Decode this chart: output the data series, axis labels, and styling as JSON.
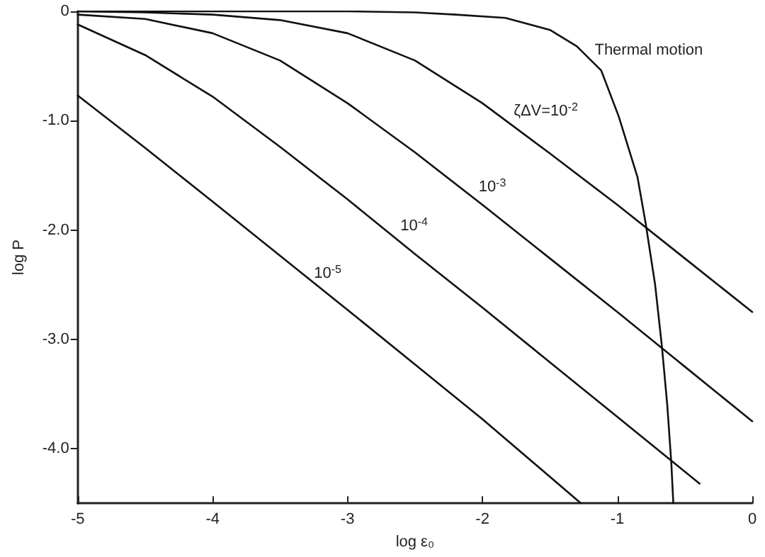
{
  "chart_data": {
    "type": "line",
    "xlabel": "log ε₀",
    "ylabel": "log P",
    "xlim": [
      -5,
      0
    ],
    "xticks": [
      -5,
      -4,
      -3,
      -2,
      -1,
      0
    ],
    "ylim": [
      -4.5,
      0
    ],
    "yticks": [
      {
        "value": 0,
        "label": "0"
      },
      {
        "value": -1,
        "label": "-1.0"
      },
      {
        "value": -2,
        "label": "-2.0"
      },
      {
        "value": -3,
        "label": "-3.0"
      },
      {
        "value": -4,
        "label": "-4.0"
      }
    ],
    "grid": false,
    "marker": "none",
    "line_style": "solid",
    "series": [
      {
        "color": "#111111",
        "x": [
          -5,
          -3,
          -2.5,
          -2.2,
          -1.83,
          -1.5,
          -1.3,
          -1.12,
          -0.99,
          -0.85,
          -0.79,
          -0.72,
          -0.67,
          -0.63,
          -0.6,
          -0.585
        ],
        "values": [
          0,
          0,
          -0.01,
          -0.03,
          -0.06,
          -0.17,
          -0.32,
          -0.54,
          -0.96,
          -1.52,
          -1.94,
          -2.5,
          -3.06,
          -3.6,
          -4.13,
          -4.5
        ]
      },
      {
        "color": "#111111",
        "x": [
          -5,
          -4.5,
          -4,
          -3.5,
          -3,
          -2.5,
          -2,
          -1.5,
          -1,
          -0.5,
          0
        ],
        "values": [
          0,
          -0.01,
          -0.03,
          -0.08,
          -0.2,
          -0.45,
          -0.84,
          -1.3,
          -1.77,
          -2.26,
          -2.75
        ]
      },
      {
        "color": "#111111",
        "x": [
          -5,
          -4.5,
          -4,
          -3.5,
          -3,
          -2.5,
          -2,
          -1.5,
          -1,
          -0.5,
          0
        ],
        "values": [
          -0.03,
          -0.07,
          -0.2,
          -0.45,
          -0.84,
          -1.29,
          -1.77,
          -2.26,
          -2.75,
          -3.25,
          -3.75
        ]
      },
      {
        "color": "#111111",
        "x": [
          -5,
          -4.5,
          -4,
          -3.5,
          -3,
          -2.5,
          -2,
          -1.5,
          -1,
          -0.39
        ],
        "values": [
          -0.12,
          -0.4,
          -0.78,
          -1.24,
          -1.72,
          -2.22,
          -2.71,
          -3.21,
          -3.71,
          -4.32
        ]
      },
      {
        "color": "#111111",
        "x": [
          -5,
          -4.5,
          -4,
          -3,
          -2,
          -1.27
        ],
        "values": [
          -0.77,
          -1.25,
          -1.74,
          -2.73,
          -3.73,
          -4.5
        ]
      }
    ],
    "annotations": [
      {
        "text": "Thermal motion",
        "x": -1.2,
        "y": -0.44
      },
      {
        "text": "ζΔV=10$^{-2}$",
        "x": -1.8,
        "y": -1.02
      },
      {
        "text": "10$^{-3}$",
        "x": -2.06,
        "y": -1.71
      },
      {
        "text": "10$^{-4}$",
        "x": -2.64,
        "y": -2.07
      },
      {
        "text": "10$^{-5}$",
        "x": -3.28,
        "y": -2.5
      }
    ]
  }
}
